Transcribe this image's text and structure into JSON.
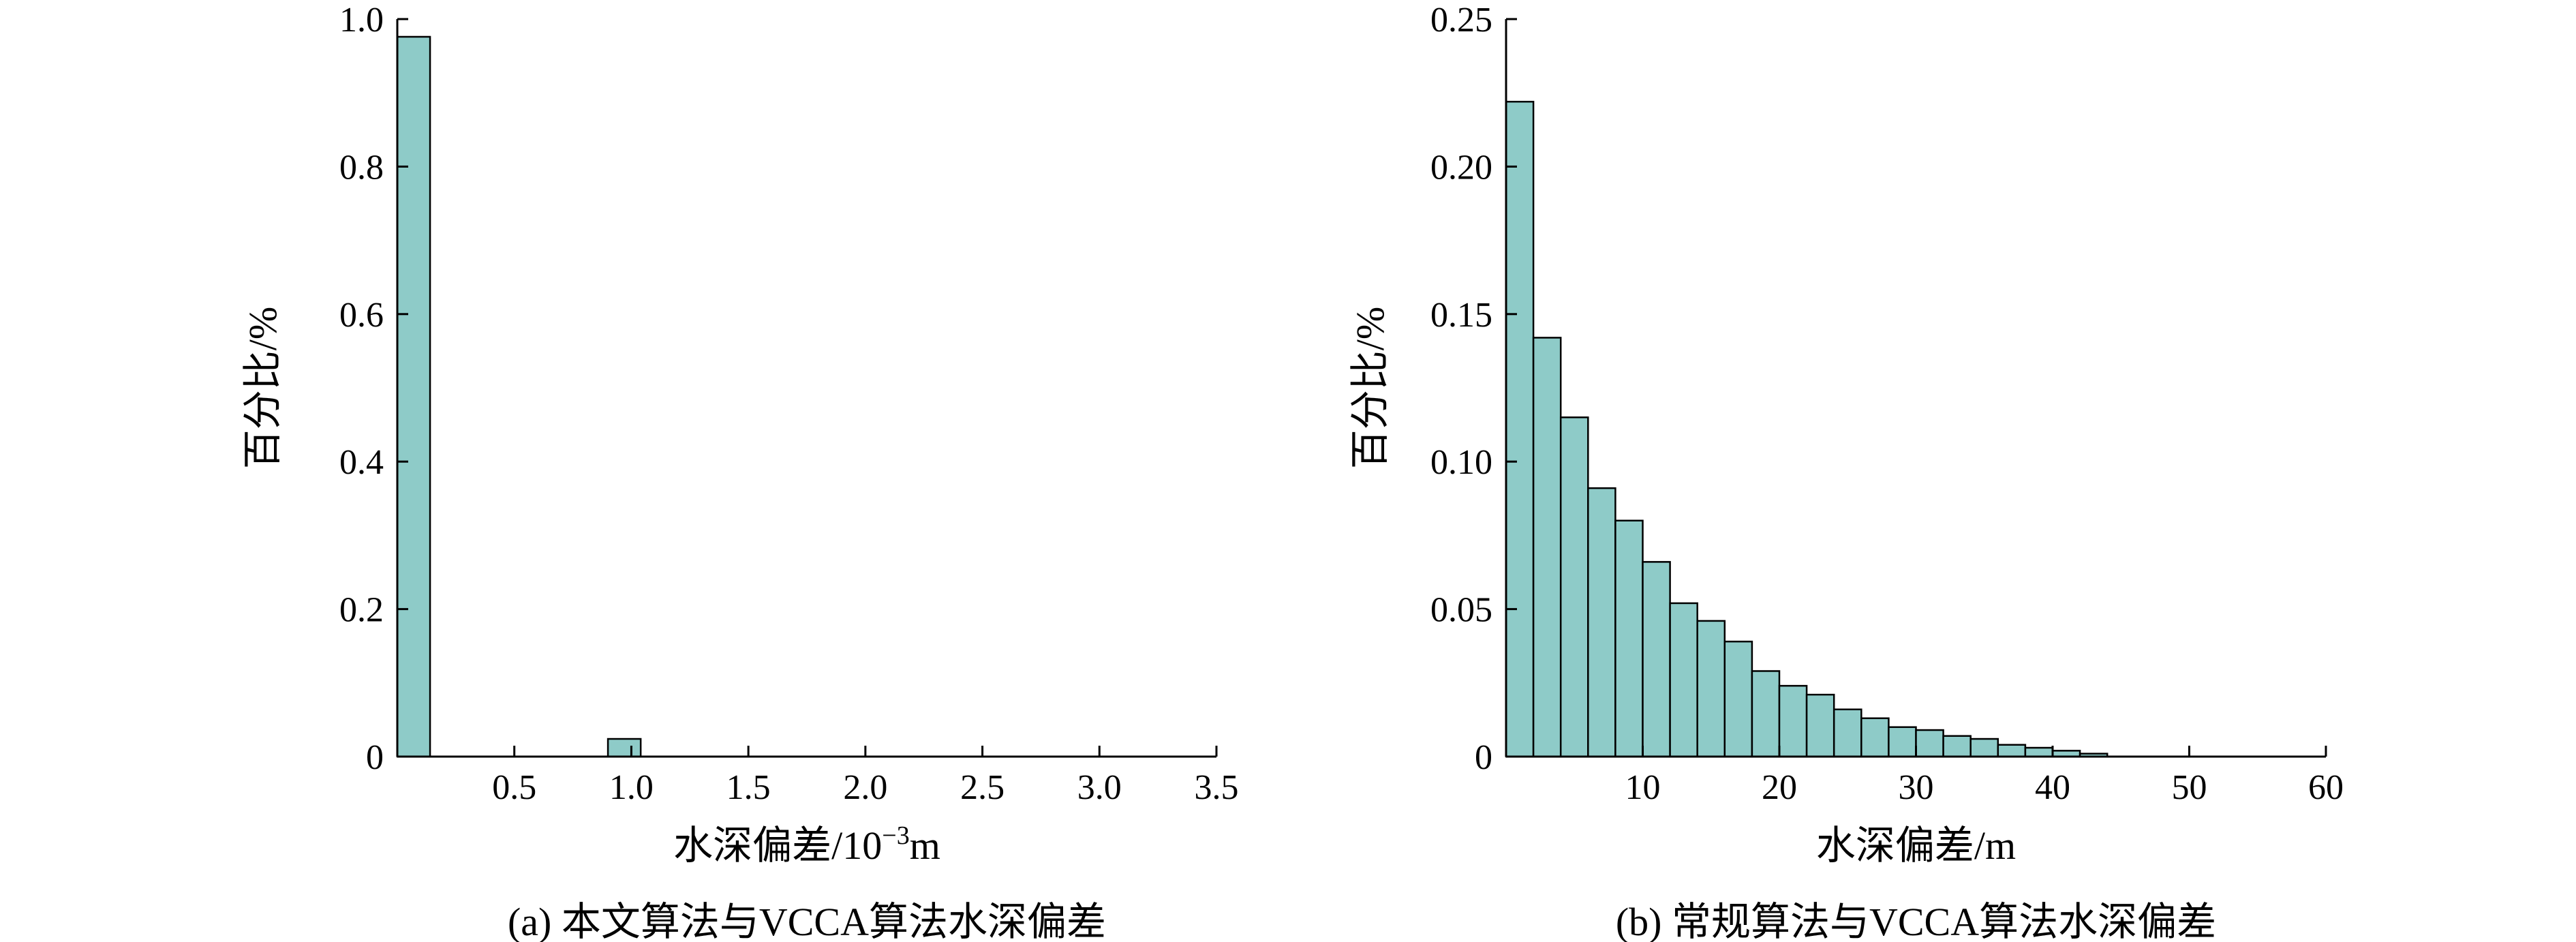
{
  "chart_data": [
    {
      "type": "bar",
      "title": "",
      "caption": "(a) 本文算法与VCCA算法水深偏差",
      "xlabel_main": "水深偏差/10",
      "xlabel_sup": "−3",
      "xlabel_unit": "m",
      "ylabel": "百分比/%",
      "xlim": [
        0,
        3.5
      ],
      "ylim": [
        0,
        1.0
      ],
      "bar_color": "#8ecbc8",
      "x_ticks": [
        0.5,
        1.0,
        1.5,
        2.0,
        2.5,
        3.0,
        3.5
      ],
      "x_tick_labels": [
        "0.5",
        "1.0",
        "1.5",
        "2.0",
        "2.5",
        "3.0",
        "3.5"
      ],
      "y_ticks": [
        0,
        0.2,
        0.4,
        0.6,
        0.8,
        1.0
      ],
      "y_tick_labels": [
        "0",
        "0.2",
        "0.4",
        "0.6",
        "0.8",
        "1.0"
      ],
      "bins": [
        {
          "x0": 0.0,
          "x1": 0.14,
          "value": 0.976
        },
        {
          "x0": 0.9,
          "x1": 1.04,
          "value": 0.024
        }
      ]
    },
    {
      "type": "bar",
      "title": "",
      "caption": "(b) 常规算法与VCCA算法水深偏差",
      "xlabel_main": "水深偏差/m",
      "xlabel_sup": "",
      "xlabel_unit": "",
      "ylabel": "百分比/%",
      "xlim": [
        0,
        60
      ],
      "ylim": [
        0,
        0.25
      ],
      "bar_color": "#8ecbc8",
      "x_ticks": [
        10,
        20,
        30,
        40,
        50,
        60
      ],
      "x_tick_labels": [
        "10",
        "20",
        "30",
        "40",
        "50",
        "60"
      ],
      "y_ticks": [
        0,
        0.05,
        0.1,
        0.15,
        0.2,
        0.25
      ],
      "y_tick_labels": [
        "0",
        "0.05",
        "0.10",
        "0.15",
        "0.20",
        "0.25"
      ],
      "bin_start": 0,
      "bin_width": 2,
      "values": [
        0.222,
        0.142,
        0.115,
        0.091,
        0.08,
        0.066,
        0.052,
        0.046,
        0.039,
        0.029,
        0.024,
        0.021,
        0.016,
        0.013,
        0.01,
        0.009,
        0.007,
        0.006,
        0.004,
        0.003,
        0.002,
        0.001
      ]
    }
  ]
}
